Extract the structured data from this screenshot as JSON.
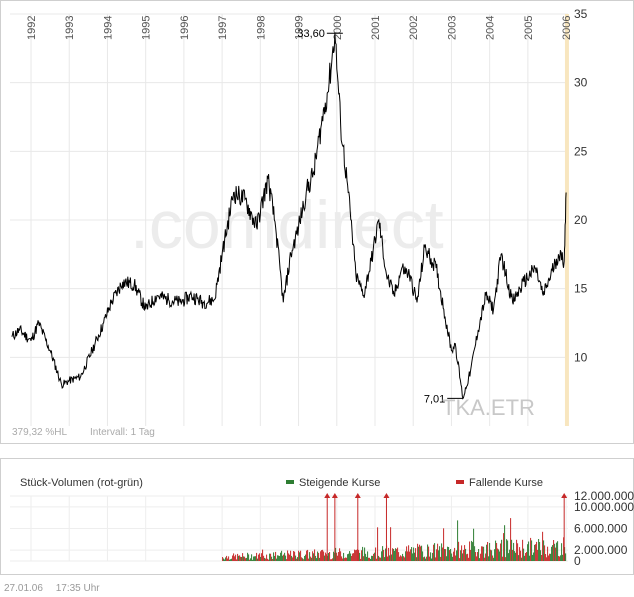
{
  "chart_data": [
    {
      "type": "line",
      "title": "",
      "series": [
        {
          "name": "",
          "x": [
            1991.5,
            1991.7,
            1992.0,
            1992.2,
            1992.5,
            1992.8,
            1993.0,
            1993.3,
            1993.6,
            1993.9,
            1994.1,
            1994.4,
            1994.7,
            1995.0,
            1995.3,
            1995.6,
            1995.9,
            1996.2,
            1996.5,
            1996.8,
            1997.0,
            1997.3,
            1997.6,
            1997.9,
            1998.2,
            1998.4,
            1998.6,
            1998.8,
            1999.0,
            1999.2,
            1999.4,
            1999.6,
            1999.8,
            1999.95,
            2000.1,
            2000.3,
            2000.5,
            2000.7,
            2000.9,
            2001.1,
            2001.3,
            2001.5,
            2001.7,
            2001.9,
            2002.1,
            2002.3,
            2002.6,
            2002.8,
            2003.0,
            2003.1,
            2003.3,
            2003.5,
            2003.7,
            2003.9,
            2004.1,
            2004.3,
            2004.6,
            2004.9,
            2005.2,
            2005.4,
            2005.6,
            2005.8,
            2005.95,
            2006.0
          ],
          "y": [
            11.5,
            12.0,
            11.2,
            12.5,
            10.5,
            8.0,
            8.3,
            8.6,
            10.5,
            12.5,
            14.0,
            15.5,
            15.3,
            13.5,
            14.5,
            14.2,
            14.0,
            14.5,
            14.0,
            14.2,
            17.5,
            22.0,
            21.5,
            19.5,
            23.0,
            19.5,
            14.0,
            17.5,
            19.5,
            22.0,
            23.5,
            27.0,
            30.0,
            33.6,
            27.0,
            22.0,
            16.0,
            14.5,
            17.0,
            20.0,
            16.0,
            14.5,
            16.5,
            16.0,
            14.0,
            18.0,
            16.5,
            13.5,
            10.5,
            11.0,
            7.0,
            9.0,
            12.0,
            14.5,
            13.5,
            17.5,
            14.0,
            15.5,
            16.5,
            14.5,
            16.0,
            17.5,
            17.0,
            22.0
          ]
        }
      ],
      "xlim": [
        1991.45,
        2006.05
      ],
      "ylim": [
        5,
        35
      ],
      "x_ticks": [
        "1992",
        "1993",
        "1994",
        "1995",
        "1996",
        "1997",
        "1998",
        "1999",
        "2000",
        "2001",
        "2002",
        "2003",
        "2004",
        "2005",
        "2006"
      ],
      "x_tick_values": [
        1992,
        1993,
        1994,
        1995,
        1996,
        1997,
        1998,
        1999,
        2000,
        2001,
        2002,
        2003,
        2004,
        2005,
        2006
      ],
      "y_ticks": [
        "10",
        "15",
        "20",
        "25",
        "30",
        "35"
      ],
      "y_tick_values": [
        10,
        15,
        20,
        25,
        30,
        35
      ],
      "annotations": {
        "max_label": "33,60",
        "max_x": 1999.95,
        "max_y": 33.6,
        "min_label": "7,01",
        "min_x": 2003.1,
        "min_y": 7.01
      },
      "watermark": ".comdirect",
      "symbol": "TKA.ETR",
      "info_range": "379,32 %HL",
      "info_interval": "Intervall: 1 Tag",
      "grid": true,
      "colors": {
        "line": "#000000",
        "grid": "#e8e8e8",
        "axis": "#d0d0d0",
        "highlight": "#f8e6bf",
        "watermark": "#ececec",
        "watermark_accent": "#fbf3dc"
      }
    },
    {
      "type": "bar",
      "title": "Stück-Volumen (rot-grün)",
      "legend": [
        {
          "name": "Steigende Kurse",
          "color": "#2e7d32"
        },
        {
          "name": "Fallende Kurse",
          "color": "#c62828"
        }
      ],
      "y_ticks": [
        "12.000.000",
        "10.000.000",
        "6.000.000",
        "2.000.000",
        "0"
      ],
      "y_tick_values": [
        12000000,
        10000000,
        6000000,
        2000000,
        0
      ],
      "ylim": [
        0,
        12000000
      ],
      "x_range": [
        1997.0,
        2006.0
      ],
      "spikes_off_scale_x": [
        1999.75,
        1999.95,
        2000.55,
        2001.3,
        2005.95
      ],
      "typical_volume": 2500000,
      "colors": {
        "up": "#2e7d32",
        "down": "#c62828",
        "arrow": "#c62828"
      }
    }
  ],
  "footer": {
    "date": "27.01.06",
    "time": "17:35 Uhr"
  }
}
